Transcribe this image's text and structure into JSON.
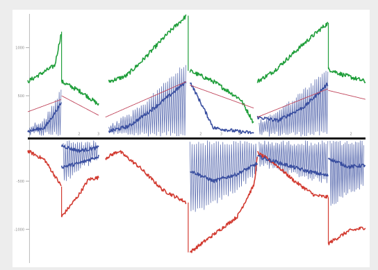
{
  "chart_data": {
    "type": "line",
    "title": "",
    "xlabel": "",
    "ylabel": "",
    "grid": false,
    "legend": "none",
    "xlim": [
      0,
      100
    ],
    "ylim": [
      -3.5,
      3.5
    ],
    "y_ticks": [
      {
        "value": 2.55,
        "label": "1000"
      },
      {
        "value": 1.2,
        "label": "500"
      },
      {
        "value": -1.2,
        "label": "-500"
      },
      {
        "value": -2.55,
        "label": "-1000"
      }
    ],
    "x_ticks": [
      {
        "value": 15.2,
        "label": "2"
      },
      {
        "value": 20.9,
        "label": "3"
      },
      {
        "value": 51.2,
        "label": "2"
      },
      {
        "value": 57.3,
        "label": "3"
      },
      {
        "value": 62.7,
        "label": "4"
      },
      {
        "value": 95.7,
        "label": "2"
      }
    ],
    "colors": {
      "green": "#1f9e3a",
      "red": "#d23a30",
      "blue": "#3a4fa0",
      "pink": "#c0445a",
      "axis": "#111111"
    },
    "series": [
      {
        "color": "green",
        "noise": 0.12,
        "segments": [
          [
            [
              0,
              1.6
            ],
            [
              8,
              2.05
            ],
            [
              10,
              3.0
            ]
          ],
          [
            [
              10,
              1.6
            ],
            [
              16,
              1.3
            ],
            [
              21,
              0.95
            ]
          ],
          [
            [
              24,
              1.6
            ],
            [
              29,
              1.75
            ],
            [
              33,
              2.1
            ],
            [
              42,
              3.0
            ],
            [
              47,
              3.45
            ]
          ],
          [
            [
              48,
              1.9
            ],
            [
              55,
              1.6
            ],
            [
              63,
              1.1
            ],
            [
              66,
              0.6
            ],
            [
              67,
              0.4
            ]
          ],
          [
            [
              68,
              1.6
            ],
            [
              73,
              1.9
            ],
            [
              81,
              2.6
            ],
            [
              87,
              3.1
            ],
            [
              89,
              3.25
            ]
          ],
          [
            [
              89,
              1.95
            ],
            [
              93,
              1.8
            ],
            [
              100,
              1.6
            ]
          ]
        ]
      },
      {
        "color": "red",
        "noise": 0.1,
        "segments": [
          [
            [
              0,
              -0.35
            ],
            [
              5,
              -0.6
            ],
            [
              10,
              -1.35
            ]
          ],
          [
            [
              10,
              -2.2
            ],
            [
              15,
              -1.6
            ],
            [
              18,
              -1.15
            ],
            [
              21,
              -1.1
            ]
          ],
          [
            [
              23,
              -0.55
            ],
            [
              27,
              -0.35
            ],
            [
              33,
              -0.8
            ],
            [
              40,
              -1.45
            ],
            [
              47,
              -1.8
            ]
          ],
          [
            [
              48,
              -3.2
            ],
            [
              55,
              -2.7
            ],
            [
              62,
              -2.2
            ],
            [
              67,
              -1.3
            ],
            [
              68,
              -0.5
            ]
          ],
          [
            [
              68,
              -0.4
            ],
            [
              73,
              -0.7
            ],
            [
              79,
              -1.2
            ],
            [
              85,
              -1.6
            ],
            [
              89,
              -1.65
            ]
          ],
          [
            [
              89,
              -2.95
            ],
            [
              95,
              -2.6
            ],
            [
              100,
              -2.5
            ]
          ]
        ]
      },
      {
        "color": "blue",
        "noise": 0.1,
        "segments": [
          [
            [
              0,
              0.2
            ],
            [
              5,
              0.3
            ],
            [
              10,
              1.0
            ]
          ],
          [
            [
              10,
              -0.2
            ],
            [
              15,
              -0.35
            ],
            [
              21,
              -0.25
            ]
          ],
          [
            [
              24,
              0.2
            ],
            [
              30,
              0.35
            ],
            [
              38,
              0.9
            ],
            [
              47,
              1.6
            ]
          ],
          [
            [
              48,
              1.6
            ],
            [
              55,
              0.3
            ],
            [
              62,
              0.2
            ],
            [
              67,
              0.15
            ]
          ],
          [
            [
              68,
              0.6
            ],
            [
              74,
              0.5
            ],
            [
              82,
              0.9
            ],
            [
              89,
              1.55
            ]
          ],
          [
            [
              10,
              -0.8
            ],
            [
              15,
              -0.7
            ],
            [
              21,
              -0.5
            ]
          ],
          [
            [
              48,
              -0.9
            ],
            [
              55,
              -1.2
            ],
            [
              62,
              -1.0
            ],
            [
              68,
              -0.7
            ]
          ],
          [
            [
              68,
              -0.5
            ],
            [
              75,
              -0.7
            ],
            [
              82,
              -0.9
            ],
            [
              89,
              -1.05
            ]
          ],
          [
            [
              89,
              -0.55
            ],
            [
              95,
              -0.8
            ],
            [
              100,
              -0.75
            ]
          ]
        ]
      },
      {
        "color": "pink",
        "noise": 0,
        "segments": [
          [
            [
              0,
              0.75
            ],
            [
              10,
              1.1
            ]
          ],
          [
            [
              10,
              1.2
            ],
            [
              21,
              0.65
            ]
          ],
          [
            [
              23,
              0.6
            ],
            [
              47,
              1.6
            ]
          ],
          [
            [
              48,
              1.5
            ],
            [
              67,
              0.85
            ]
          ],
          [
            [
              68,
              0.6
            ],
            [
              89,
              1.4
            ]
          ],
          [
            [
              89,
              1.35
            ],
            [
              100,
              1.1
            ]
          ]
        ]
      }
    ],
    "oscillations": [
      {
        "color": "blue",
        "x_start": 0.5,
        "x_end": 10,
        "period": 0.55,
        "top": [
          [
            0.5,
            0.4
          ],
          [
            5,
            0.6
          ],
          [
            10,
            1.45
          ]
        ],
        "bottom": [
          [
            0.5,
            0.05
          ],
          [
            10,
            0.05
          ]
        ]
      },
      {
        "color": "blue",
        "x_start": 24,
        "x_end": 47,
        "period": 0.6,
        "top": [
          [
            24,
            0.4
          ],
          [
            33,
            0.9
          ],
          [
            40,
            1.6
          ],
          [
            47,
            2.2
          ]
        ],
        "bottom": [
          [
            24,
            0.05
          ],
          [
            47,
            0.05
          ]
        ]
      },
      {
        "color": "blue",
        "x_start": 68.5,
        "x_end": 89,
        "period": 0.55,
        "top": [
          [
            68.5,
            0.5
          ],
          [
            78,
            1.1
          ],
          [
            89,
            2.0
          ]
        ],
        "bottom": [
          [
            68.5,
            0.05
          ],
          [
            89,
            0.05
          ]
        ]
      },
      {
        "color": "blue",
        "x_start": 10.5,
        "x_end": 21,
        "period": 0.6,
        "top": [
          [
            10.5,
            -0.05
          ],
          [
            21,
            -0.05
          ]
        ],
        "bottom": [
          [
            10.5,
            -1.3
          ],
          [
            16,
            -0.9
          ],
          [
            21,
            -0.6
          ]
        ]
      },
      {
        "color": "blue",
        "x_start": 48,
        "x_end": 68,
        "period": 0.65,
        "top": [
          [
            48,
            -0.05
          ],
          [
            68,
            -0.05
          ]
        ],
        "bottom": [
          [
            48,
            -2.2
          ],
          [
            55,
            -1.9
          ],
          [
            62,
            -1.5
          ],
          [
            68,
            -1.0
          ]
        ]
      },
      {
        "color": "blue",
        "x_start": 68.5,
        "x_end": 89,
        "period": 0.55,
        "top": [
          [
            68.5,
            -0.05
          ],
          [
            89,
            -0.05
          ]
        ],
        "bottom": [
          [
            68.5,
            -0.8
          ],
          [
            80,
            -1.1
          ],
          [
            89,
            -1.3
          ]
        ]
      },
      {
        "color": "blue",
        "x_start": 89.5,
        "x_end": 99.5,
        "period": 0.5,
        "top": [
          [
            89.5,
            -0.05
          ],
          [
            99.5,
            -0.05
          ]
        ],
        "bottom": [
          [
            89.5,
            -2.0
          ],
          [
            94,
            -1.6
          ],
          [
            99.5,
            -1.4
          ]
        ]
      }
    ],
    "discontinuities": [
      {
        "color": "green",
        "x": 10,
        "y_from": 3.0,
        "y_to": 1.6
      },
      {
        "color": "green",
        "x": 47.5,
        "y_from": 3.45,
        "y_to": 1.9
      },
      {
        "color": "green",
        "x": 89,
        "y_from": 3.25,
        "y_to": 1.95
      },
      {
        "color": "red",
        "x": 10,
        "y_from": -1.35,
        "y_to": -2.2
      },
      {
        "color": "red",
        "x": 47.5,
        "y_from": -1.8,
        "y_to": -3.2
      },
      {
        "color": "red",
        "x": 89,
        "y_from": -1.65,
        "y_to": -2.95
      }
    ],
    "axis_segments": [
      {
        "x_from": 0,
        "x_to": 100,
        "y": 0
      }
    ],
    "frame_lines": [
      {
        "x": 0.5,
        "y_from": -3.5,
        "y_to": 3.5
      }
    ]
  }
}
